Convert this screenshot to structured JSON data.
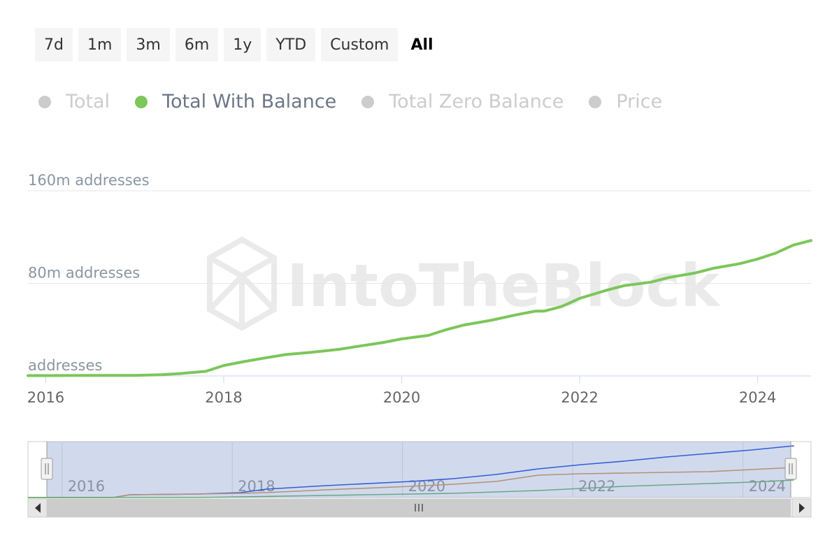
{
  "range_selector": {
    "buttons": [
      {
        "label": "7d",
        "active": false
      },
      {
        "label": "1m",
        "active": false
      },
      {
        "label": "3m",
        "active": false
      },
      {
        "label": "6m",
        "active": false
      },
      {
        "label": "1y",
        "active": false
      },
      {
        "label": "YTD",
        "active": false
      },
      {
        "label": "Custom",
        "active": false
      },
      {
        "label": "All",
        "active": true
      }
    ]
  },
  "legend": [
    {
      "label": "Total",
      "enabled": false,
      "color": "#cccccc"
    },
    {
      "label": "Total With Balance",
      "enabled": true,
      "color": "#7cc65a"
    },
    {
      "label": "Total Zero Balance",
      "enabled": false,
      "color": "#cccccc"
    },
    {
      "label": "Price",
      "enabled": false,
      "color": "#cccccc"
    }
  ],
  "watermark": "IntoTheBlock",
  "colors": {
    "main_series": "#7cc65a",
    "legend_active_text": "#6b7686",
    "legend_inactive_text": "#cccccc",
    "axis_label": "#8a95a3",
    "gridline": "#e6e6e6",
    "navigator_mask": "rgba(102,133,194,0.3)",
    "navigator_total": "#1f4de0",
    "navigator_zero_balance": "#d29a55",
    "navigator_with_balance": "#6ab86a"
  },
  "chart_data": {
    "type": "line",
    "title": "",
    "xlabel": "",
    "ylabel": "",
    "x_range": [
      2015.8,
      2024.6
    ],
    "ylim": [
      0,
      160
    ],
    "y_unit": "m addresses",
    "y_tick_labels": [
      "addresses",
      "80m addresses",
      "160m addresses"
    ],
    "x_tick_labels": [
      "2016",
      "2018",
      "2020",
      "2022",
      "2024"
    ],
    "grid": true,
    "legend_position": "top-left",
    "series": [
      {
        "name": "Total With Balance",
        "x": [
          2015.8,
          2016.0,
          2016.5,
          2017.0,
          2017.3,
          2017.5,
          2017.8,
          2018.0,
          2018.2,
          2018.5,
          2018.7,
          2019.0,
          2019.3,
          2019.5,
          2019.8,
          2020.0,
          2020.3,
          2020.5,
          2020.7,
          2021.0,
          2021.3,
          2021.5,
          2021.6,
          2021.8,
          2022.0,
          2022.3,
          2022.5,
          2022.8,
          2023.0,
          2023.3,
          2023.5,
          2023.8,
          2024.0,
          2024.2,
          2024.4,
          2024.6
        ],
        "y": [
          0.3,
          0.3,
          0.4,
          0.5,
          1.0,
          2.0,
          4.0,
          9.0,
          12.0,
          16.0,
          18.5,
          20.5,
          23.0,
          25.5,
          29.0,
          32.0,
          35.0,
          40.0,
          44.0,
          48.0,
          53.0,
          56.0,
          56.0,
          60.0,
          67.0,
          74.0,
          78.0,
          81.0,
          85.0,
          89.0,
          93.0,
          97.0,
          101.0,
          106.0,
          113.0,
          117.0
        ]
      }
    ],
    "navigator": {
      "x_tick_labels": [
        "2016",
        "2018",
        "2020",
        "2022",
        "2024"
      ],
      "series": [
        {
          "name": "Total",
          "x": [
            2015.5,
            2016.5,
            2016.7,
            2017.5,
            2018.0,
            2018.3,
            2019.0,
            2020.0,
            2020.5,
            2021.0,
            2021.5,
            2022.0,
            2022.5,
            2023.0,
            2023.5,
            2024.0,
            2024.5
          ],
          "y": [
            0,
            0,
            4,
            5,
            7,
            12,
            17,
            23,
            27,
            33,
            41,
            47,
            52,
            58,
            63,
            68,
            74
          ]
        },
        {
          "name": "Total Zero Balance",
          "x": [
            2015.5,
            2016.5,
            2016.7,
            2017.5,
            2018.0,
            2018.3,
            2019.0,
            2020.0,
            2020.5,
            2021.0,
            2021.5,
            2022.0,
            2022.5,
            2023.0,
            2023.5,
            2024.0,
            2024.5
          ],
          "y": [
            0,
            0,
            4,
            5,
            6,
            7,
            11,
            16,
            19,
            23,
            32,
            34,
            35,
            36,
            37,
            40,
            43
          ]
        },
        {
          "name": "Total With Balance",
          "x": [
            2015.5,
            2016.5,
            2017.0,
            2017.5,
            2018.0,
            2018.5,
            2019.0,
            2019.5,
            2020.0,
            2020.5,
            2021.0,
            2021.5,
            2022.0,
            2022.5,
            2023.0,
            2023.5,
            2024.0,
            2024.5
          ],
          "y": [
            0,
            0,
            0,
            0,
            1,
            2,
            3,
            4,
            5,
            6,
            8,
            10,
            13,
            16,
            18,
            20,
            22,
            25
          ]
        }
      ]
    }
  }
}
